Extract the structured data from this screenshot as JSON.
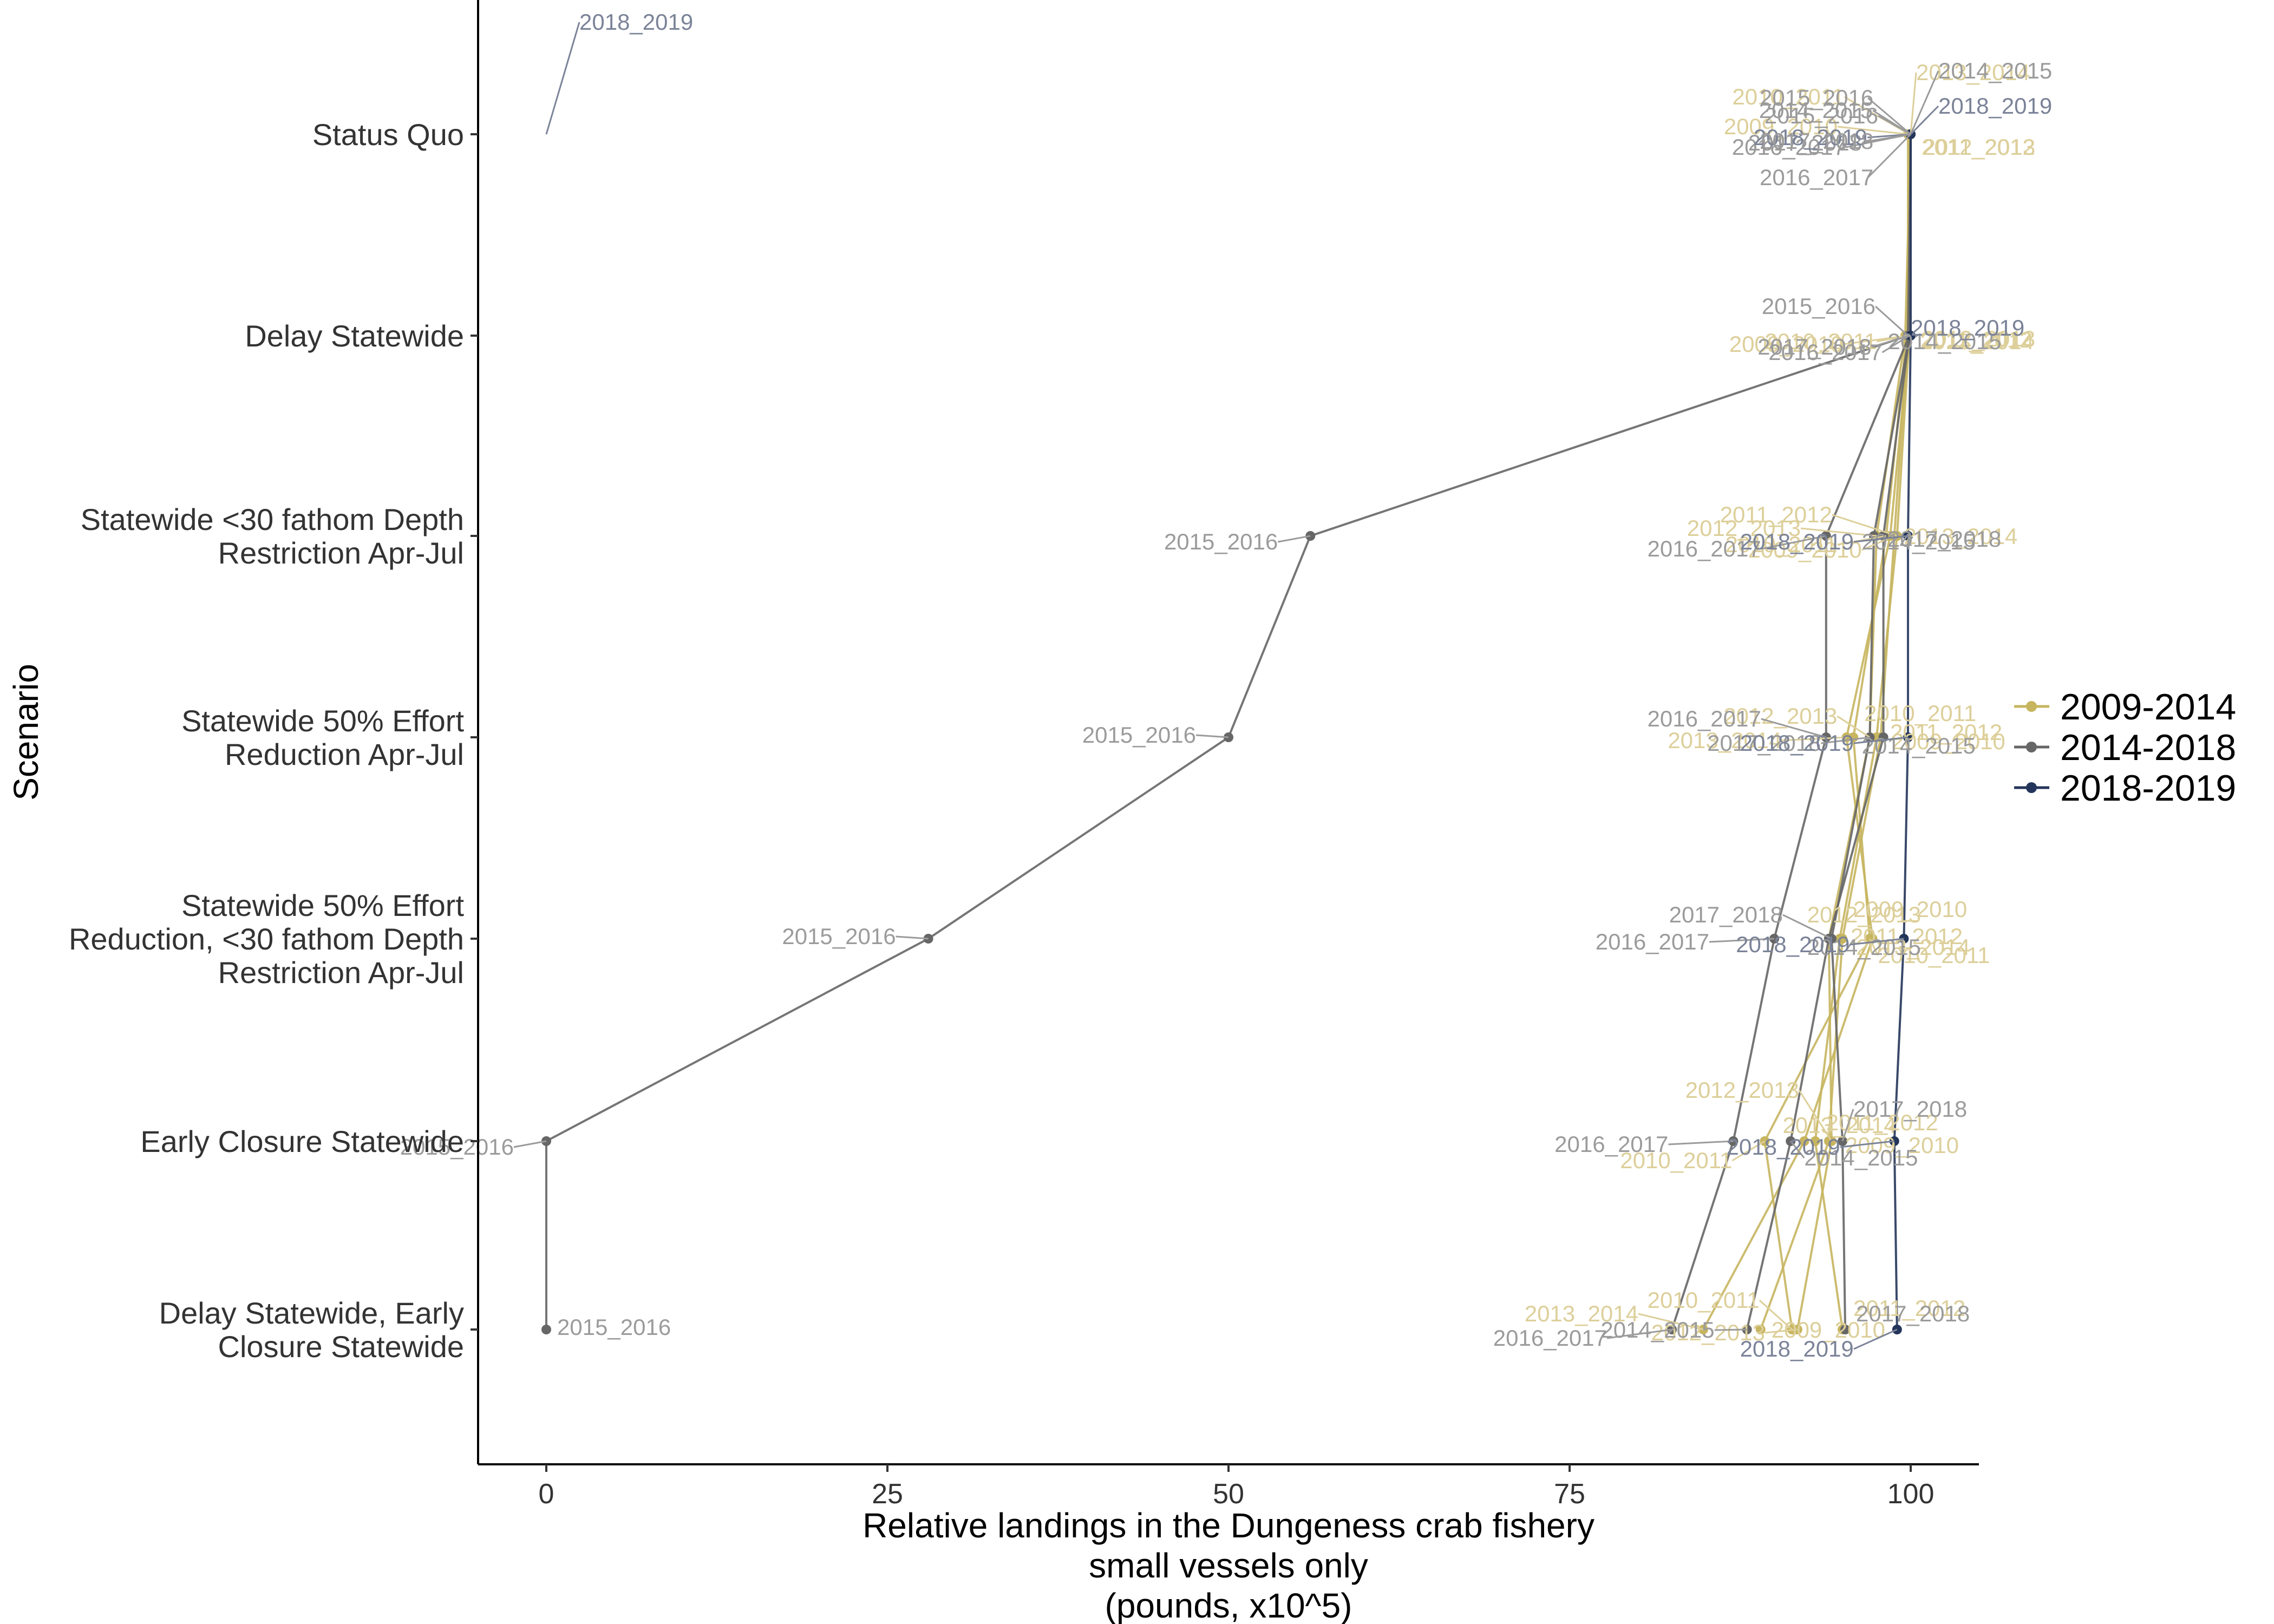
{
  "chart_data": {
    "type": "line",
    "xlabel": [
      "Relative landings in the Dungeness crab fishery",
      "small vessels only",
      "(pounds, x10^5)"
    ],
    "ylabel": "Scenario",
    "xlim": [
      -5,
      105
    ],
    "xticks": [
      0,
      25,
      50,
      75,
      100
    ],
    "xtick_labels": [
      "0",
      "25",
      "50",
      "75",
      "100"
    ],
    "categories": [
      [
        "Status Quo"
      ],
      [
        "Delay Statewide"
      ],
      [
        "Statewide <30 fathom Depth",
        "Restriction Apr-Jul"
      ],
      [
        "Statewide 50% Effort",
        "Reduction Apr-Jul"
      ],
      [
        "Statewide 50% Effort",
        "Reduction, <30 fathom Depth",
        "Restriction Apr-Jul"
      ],
      [
        "Early Closure Statewide"
      ],
      [
        "Delay Statewide, Early",
        "Closure Statewide"
      ]
    ],
    "grid": false,
    "legend_position": "right",
    "groups": [
      {
        "name": "2009-2014",
        "color": "#c7b55f",
        "label_color": "#ddcf9a"
      },
      {
        "name": "2014-2018",
        "color": "#666666",
        "label_color": "#9b9b9b"
      },
      {
        "name": "2018-2019",
        "color": "#23355a",
        "label_color": "#7b8398"
      }
    ],
    "series": [
      {
        "name": "2009_2010",
        "group": 0,
        "values": [
          99.8,
          99.8,
          98.8,
          97.8,
          95.0,
          94.0,
          89.0
        ],
        "labels": [
          {
            "dx": -130,
            "dy": 0
          },
          {
            "dx": -120,
            "dy": 30
          },
          {
            "dx": -60,
            "dy": 40
          },
          {
            "dx": 20,
            "dy": 22
          },
          {
            "dx": 20,
            "dy": -40
          },
          {
            "dx": 30,
            "dy": 22
          },
          {
            "dx": 20,
            "dy": 15
          }
        ]
      },
      {
        "name": "2010_2011",
        "group": 0,
        "values": [
          99.9,
          99.7,
          98.2,
          95.8,
          97.0,
          89.3,
          91.3
        ],
        "labels": [
          {
            "dx": -120,
            "dy": -55
          },
          {
            "dx": -55,
            "dy": 25
          },
          {
            "dx": -90,
            "dy": 30
          },
          {
            "dx": 20,
            "dy": -30
          },
          {
            "dx": 15,
            "dy": 45
          },
          {
            "dx": -60,
            "dy": 50
          },
          {
            "dx": -60,
            "dy": -40
          }
        ]
      },
      {
        "name": "2011_2012",
        "group": 0,
        "values": [
          99.9,
          99.9,
          99.0,
          97.5,
          94.8,
          93.0,
          95.0
        ],
        "labels": [
          {
            "dx": 25,
            "dy": 38
          },
          {
            "dx": 20,
            "dy": 22
          },
          {
            "dx": -120,
            "dy": -25
          },
          {
            "dx": 25,
            "dy": 5
          },
          {
            "dx": 20,
            "dy": 10
          },
          {
            "dx": 20,
            "dy": -20
          },
          {
            "dx": 20,
            "dy": -25
          }
        ]
      },
      {
        "name": "2012_2013",
        "group": 0,
        "values": [
          100.0,
          99.6,
          97.5,
          97.0,
          94.0,
          94.2,
          91.7
        ],
        "labels": [
          {
            "dx": 20,
            "dy": 38
          },
          {
            "dx": 30,
            "dy": 20
          },
          {
            "dx": -140,
            "dy": 0
          },
          {
            "dx": -60,
            "dy": -25
          },
          {
            "dx": -40,
            "dy": -30
          },
          {
            "dx": -60,
            "dy": -80
          },
          {
            "dx": -60,
            "dy": 20
          }
        ]
      },
      {
        "name": "2013_2014",
        "group": 0,
        "values": [
          100.0,
          99.9,
          98.5,
          95.3,
          97.2,
          92.2,
          84.8
        ],
        "labels": [
          {
            "dx": 10,
            "dy": -100
          },
          {
            "dx": 20,
            "dy": 25
          },
          {
            "dx": 25,
            "dy": 15
          },
          {
            "dx": -120,
            "dy": 20
          },
          {
            "dx": -30,
            "dy": 30
          },
          {
            "dx": -40,
            "dy": -15
          },
          {
            "dx": -120,
            "dy": -15
          }
        ]
      },
      {
        "name": "2014_2015",
        "group": 1,
        "values": [
          100.0,
          99.9,
          98.0,
          98.0,
          94.0,
          91.2,
          88.0
        ],
        "labels": [
          {
            "dx": -70,
            "dy": -30
          },
          {
            "dx": -40,
            "dy": 25
          },
          {
            "dx": -40,
            "dy": 25
          },
          {
            "dx": -40,
            "dy": 30
          },
          {
            "dx": -40,
            "dy": 30
          },
          {
            "dx": 25,
            "dy": 45
          },
          {
            "dx": -60,
            "dy": 15
          }
        ]
      },
      {
        "name": "2015_2016",
        "group": 1,
        "values": [
          100.0,
          99.8,
          56.0,
          50.0,
          28.0,
          0.0,
          0.0
        ],
        "labels": [
          {
            "dx": -60,
            "dy": -20
          },
          {
            "dx": -60,
            "dy": -40
          },
          {
            "dx": -60,
            "dy": 25
          },
          {
            "dx": -60,
            "dy": 10
          },
          {
            "dx": -60,
            "dy": 10
          },
          {
            "dx": -60,
            "dy": 25
          },
          {
            "dx": 20,
            "dy": 10
          }
        ]
      },
      {
        "name": "2016_2017",
        "group": 1,
        "values": [
          100.0,
          99.9,
          93.8,
          93.8,
          90.0,
          87.0,
          82.5
        ],
        "labels": [
          {
            "dx": -120,
            "dy": 38
          },
          {
            "dx": -50,
            "dy": 45
          },
          {
            "dx": -120,
            "dy": 38
          },
          {
            "dx": -120,
            "dy": -20
          },
          {
            "dx": -120,
            "dy": 20
          },
          {
            "dx": -120,
            "dy": 20
          },
          {
            "dx": -120,
            "dy": 30
          }
        ]
      },
      {
        "name": "2017_2018",
        "group": 1,
        "values": [
          100.0,
          99.9,
          97.3,
          97.0,
          94.2,
          95.0,
          95.2
        ],
        "labels": [
          {
            "dx": -90,
            "dy": 30
          },
          {
            "dx": -70,
            "dy": 35
          },
          {
            "dx": 25,
            "dy": 20
          },
          {
            "dx": -90,
            "dy": 25
          },
          {
            "dx": -90,
            "dy": -30
          },
          {
            "dx": 20,
            "dy": -45
          },
          {
            "dx": 20,
            "dy": -15
          }
        ]
      },
      {
        "name": "2018_2019",
        "group": 2,
        "values": [
          100.0,
          100.0,
          99.8,
          99.8,
          99.5,
          98.8,
          99.0
        ],
        "labels": [
          {
            "dx": -80,
            "dy": 20
          },
          {
            "dx": 0,
            "dy": 0
          },
          {
            "dx": -100,
            "dy": 25
          },
          {
            "dx": -100,
            "dy": 25
          },
          {
            "dx": -100,
            "dy": 25
          },
          {
            "dx": -100,
            "dy": 25
          },
          {
            "dx": -80,
            "dy": 50
          }
        ]
      }
    ],
    "extra_labels": [
      {
        "name": "2018_2019",
        "series": 9,
        "value": 0.0,
        "category": 0,
        "text_x": 1070,
        "text_y": 55,
        "anchor_x": 1125,
        "anchor_y": 40
      },
      {
        "name": "2014_2015",
        "series": 5,
        "value": 100,
        "category": 0,
        "text_x": 3580,
        "text_y": 145
      },
      {
        "name": "2018_2019",
        "series": 9,
        "value": 100,
        "category": 0,
        "text_x": 3580,
        "text_y": 210
      },
      {
        "name": "2015_2016",
        "series": 6,
        "value": 100,
        "category": 0,
        "text_x": 3250,
        "text_y": 195
      },
      {
        "name": "2017_2018",
        "series": 8,
        "value": 100,
        "category": 0,
        "text_x": 3250,
        "text_y": 275
      },
      {
        "name": "2016_2017",
        "series": 7,
        "value": 100,
        "category": 0,
        "text_x": 3250,
        "text_y": 342
      }
    ]
  }
}
